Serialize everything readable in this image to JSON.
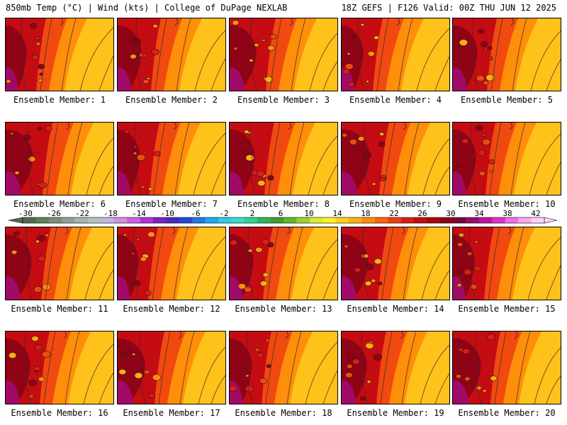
{
  "header": {
    "title": "850mb Temp (°C) | Wind (kts) | College of DuPage NEXLAB",
    "run": "18Z GEFS | F126 Valid: 00Z THU JUN 12 2025"
  },
  "colorbar": {
    "tick_labels": [
      "-30",
      "-26",
      "-22",
      "-18",
      "-14",
      "-10",
      "-6",
      "-2",
      "2",
      "6",
      "10",
      "14",
      "18",
      "22",
      "26",
      "30",
      "34",
      "38",
      "42"
    ],
    "colors": [
      "#4f6b4a",
      "#617d5c",
      "#78907a",
      "#8fa394",
      "#a3b3ae",
      "#b6bfc8",
      "#c7b3e8",
      "#d38ee6",
      "#c963e2",
      "#b433d6",
      "#7a22c6",
      "#4a2bc0",
      "#2348d8",
      "#1f78e6",
      "#21a6f0",
      "#2ccbe8",
      "#36dcc7",
      "#30cf93",
      "#2db459",
      "#3c9e2e",
      "#63b72a",
      "#9ed22e",
      "#d7ef2b",
      "#fff21e",
      "#ffd11a",
      "#ffae10",
      "#ff8a0a",
      "#fb640a",
      "#f03c10",
      "#de1b14",
      "#c20c12",
      "#a6060c",
      "#8e0316",
      "#7a0535",
      "#990a70",
      "#c4129c",
      "#e230c9",
      "#f26de1",
      "#fba8ef",
      "#fdd3f7"
    ]
  },
  "panels": [
    {
      "label": "Ensemble Member: 1"
    },
    {
      "label": "Ensemble Member: 2"
    },
    {
      "label": "Ensemble Member: 3"
    },
    {
      "label": "Ensemble Member: 4"
    },
    {
      "label": "Ensemble Member: 5"
    },
    {
      "label": "Ensemble Member: 6"
    },
    {
      "label": "Ensemble Member: 7"
    },
    {
      "label": "Ensemble Member: 8"
    },
    {
      "label": "Ensemble Member: 9"
    },
    {
      "label": "Ensemble Member: 10"
    },
    {
      "label": "Ensemble Member: 11"
    },
    {
      "label": "Ensemble Member: 12"
    },
    {
      "label": "Ensemble Member: 13"
    },
    {
      "label": "Ensemble Member: 14"
    },
    {
      "label": "Ensemble Member: 15"
    },
    {
      "label": "Ensemble Member: 16"
    },
    {
      "label": "Ensemble Member: 17"
    },
    {
      "label": "Ensemble Member: 18"
    },
    {
      "label": "Ensemble Member: 19"
    },
    {
      "label": "Ensemble Member: 20"
    }
  ]
}
